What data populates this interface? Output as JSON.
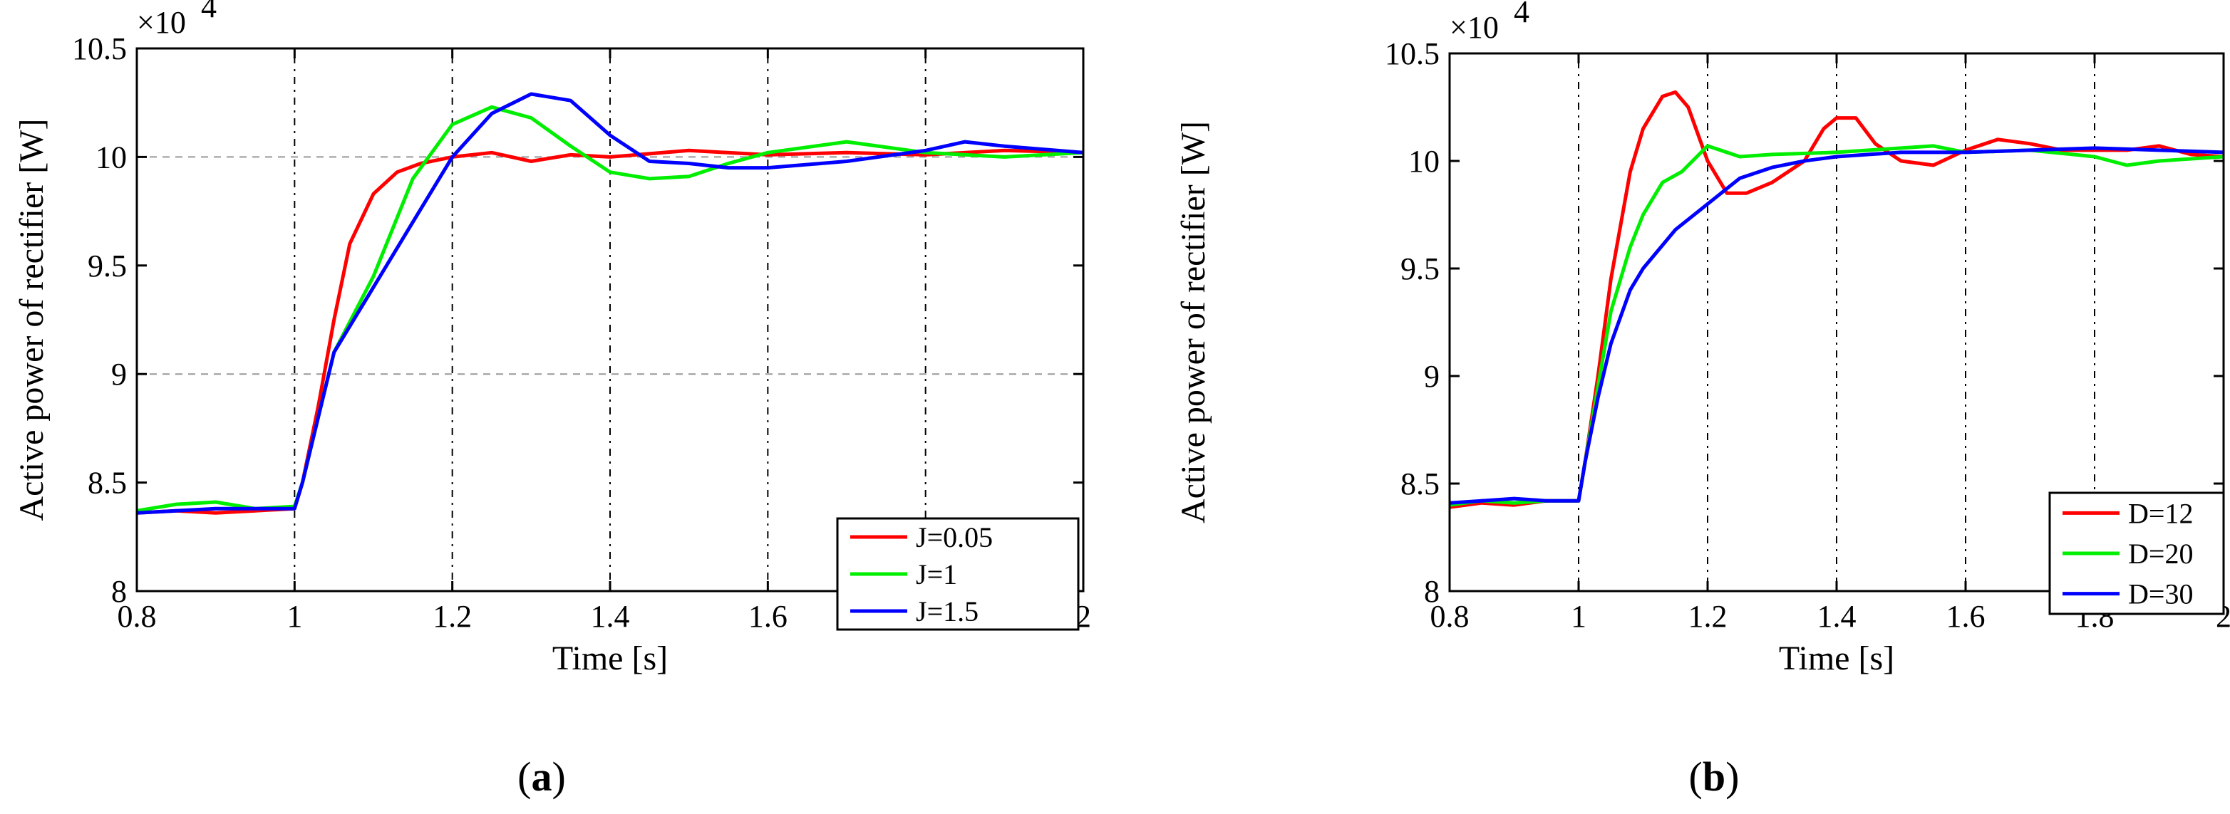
{
  "colors": {
    "red": "#ff0000",
    "green": "#00ee00",
    "blue": "#0000ff",
    "grid": "#999999"
  },
  "chart_data": [
    {
      "type": "line",
      "caption": "(a)",
      "caption_letter": "a",
      "multiplier": "×10",
      "exponent": "4",
      "xlabel": "Time [s]",
      "ylabel": "Active power of rectifier [W]",
      "xlim": [
        0.8,
        2.0
      ],
      "ylim": [
        8.0,
        10.5
      ],
      "xticks": [
        0.8,
        1.0,
        1.2,
        1.4,
        1.6,
        1.8,
        2.0
      ],
      "xtick_labels": [
        "0.8",
        "1",
        "1.2",
        "1.4",
        "1.6",
        "1.8",
        "2"
      ],
      "yticks": [
        8.0,
        8.5,
        9.0,
        9.5,
        10.0,
        10.5
      ],
      "ytick_labels": [
        "8",
        "8.5",
        "9",
        "9.5",
        "10",
        "10.5"
      ],
      "vgrid_dotted": [
        1.0,
        1.2,
        1.4,
        1.6,
        1.8
      ],
      "hgrid_dashed": [
        9.0,
        10.0
      ],
      "legend_position": "bottom-right",
      "series": [
        {
          "name": "J=0.05",
          "color": "red",
          "x": [
            0.8,
            0.85,
            0.9,
            0.95,
            1.0,
            1.01,
            1.03,
            1.05,
            1.07,
            1.1,
            1.13,
            1.16,
            1.2,
            1.25,
            1.3,
            1.35,
            1.4,
            1.5,
            1.6,
            1.7,
            1.8,
            1.9,
            2.0
          ],
          "y": [
            8.36,
            8.37,
            8.36,
            8.37,
            8.38,
            8.5,
            8.85,
            9.25,
            9.6,
            9.83,
            9.93,
            9.97,
            10.0,
            10.02,
            9.98,
            10.01,
            10.0,
            10.03,
            10.01,
            10.02,
            10.01,
            10.03,
            10.02
          ]
        },
        {
          "name": "J=1",
          "color": "green",
          "x": [
            0.8,
            0.85,
            0.9,
            0.95,
            1.0,
            1.01,
            1.03,
            1.05,
            1.1,
            1.15,
            1.2,
            1.25,
            1.3,
            1.35,
            1.4,
            1.45,
            1.5,
            1.55,
            1.6,
            1.7,
            1.8,
            1.9,
            2.0
          ],
          "y": [
            8.37,
            8.4,
            8.41,
            8.38,
            8.39,
            8.5,
            8.8,
            9.1,
            9.45,
            9.9,
            10.15,
            10.23,
            10.18,
            10.05,
            9.93,
            9.9,
            9.91,
            9.97,
            10.02,
            10.07,
            10.02,
            10.0,
            10.02
          ]
        },
        {
          "name": "J=1.5",
          "color": "blue",
          "x": [
            0.8,
            0.85,
            0.9,
            0.95,
            1.0,
            1.01,
            1.03,
            1.05,
            1.1,
            1.15,
            1.2,
            1.25,
            1.3,
            1.35,
            1.4,
            1.45,
            1.5,
            1.55,
            1.6,
            1.7,
            1.8,
            1.85,
            1.9,
            2.0
          ],
          "y": [
            8.36,
            8.37,
            8.38,
            8.38,
            8.38,
            8.5,
            8.8,
            9.1,
            9.4,
            9.7,
            10.0,
            10.2,
            10.29,
            10.26,
            10.1,
            9.98,
            9.97,
            9.95,
            9.95,
            9.98,
            10.03,
            10.07,
            10.05,
            10.02
          ]
        }
      ]
    },
    {
      "type": "line",
      "caption": "(b)",
      "caption_letter": "b",
      "multiplier": "×10",
      "exponent": "4",
      "xlabel": "Time [s]",
      "ylabel": "Active power of rectifier [W]",
      "xlim": [
        0.8,
        2.0
      ],
      "ylim": [
        8.0,
        10.5
      ],
      "xticks": [
        0.8,
        1.0,
        1.2,
        1.4,
        1.6,
        1.8,
        2.0
      ],
      "xtick_labels": [
        "0.8",
        "1",
        "1.2",
        "1.4",
        "1.6",
        "1.8",
        "2"
      ],
      "yticks": [
        8.0,
        8.5,
        9.0,
        9.5,
        10.0,
        10.5
      ],
      "ytick_labels": [
        "8",
        "8.5",
        "9",
        "9.5",
        "10",
        "10.5"
      ],
      "vgrid_dotted": [
        1.0,
        1.2,
        1.4,
        1.6,
        1.8
      ],
      "hgrid_dashed": [],
      "legend_position": "bottom-right",
      "series": [
        {
          "name": "D=12",
          "color": "red",
          "x": [
            0.8,
            0.85,
            0.9,
            0.95,
            1.0,
            1.01,
            1.03,
            1.05,
            1.08,
            1.1,
            1.13,
            1.15,
            1.17,
            1.2,
            1.23,
            1.26,
            1.3,
            1.35,
            1.38,
            1.4,
            1.43,
            1.46,
            1.5,
            1.55,
            1.6,
            1.65,
            1.7,
            1.75,
            1.8,
            1.85,
            1.9,
            1.95,
            2.0
          ],
          "y": [
            8.39,
            8.41,
            8.4,
            8.42,
            8.42,
            8.6,
            9.0,
            9.45,
            9.95,
            10.15,
            10.3,
            10.32,
            10.25,
            10.0,
            9.85,
            9.85,
            9.9,
            10.0,
            10.15,
            10.2,
            10.2,
            10.08,
            10.0,
            9.98,
            10.05,
            10.1,
            10.08,
            10.05,
            10.05,
            10.05,
            10.07,
            10.03,
            10.02
          ]
        },
        {
          "name": "D=20",
          "color": "green",
          "x": [
            0.8,
            0.85,
            0.9,
            0.95,
            1.0,
            1.01,
            1.03,
            1.05,
            1.08,
            1.1,
            1.13,
            1.16,
            1.2,
            1.25,
            1.3,
            1.4,
            1.5,
            1.55,
            1.6,
            1.7,
            1.8,
            1.85,
            1.9,
            2.0
          ],
          "y": [
            8.4,
            8.42,
            8.41,
            8.42,
            8.42,
            8.6,
            8.95,
            9.3,
            9.6,
            9.75,
            9.9,
            9.95,
            10.07,
            10.02,
            10.03,
            10.04,
            10.06,
            10.07,
            10.04,
            10.05,
            10.02,
            9.98,
            10.0,
            10.02
          ]
        },
        {
          "name": "D=30",
          "color": "blue",
          "x": [
            0.8,
            0.85,
            0.9,
            0.95,
            1.0,
            1.01,
            1.03,
            1.05,
            1.08,
            1.1,
            1.15,
            1.2,
            1.25,
            1.3,
            1.35,
            1.4,
            1.45,
            1.5,
            1.6,
            1.7,
            1.8,
            1.9,
            2.0
          ],
          "y": [
            8.41,
            8.42,
            8.43,
            8.42,
            8.42,
            8.6,
            8.9,
            9.15,
            9.4,
            9.5,
            9.68,
            9.8,
            9.92,
            9.97,
            10.0,
            10.02,
            10.03,
            10.04,
            10.04,
            10.05,
            10.06,
            10.05,
            10.04
          ]
        }
      ]
    }
  ]
}
